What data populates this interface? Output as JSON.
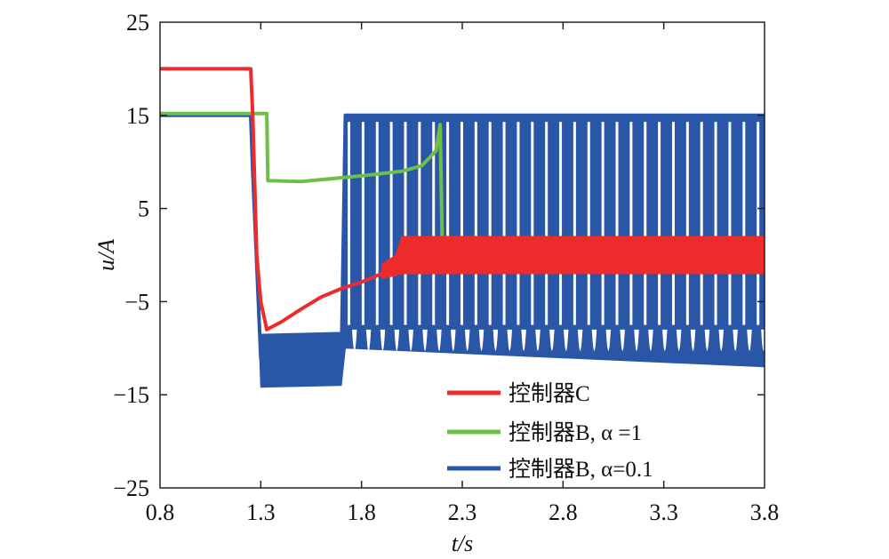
{
  "chart_data": {
    "type": "line",
    "xlabel": "t/s",
    "ylabel": "u/A",
    "xlim": [
      0.8,
      3.8
    ],
    "ylim": [
      -25,
      25
    ],
    "xticks": [
      "0.8",
      "1.3",
      "1.8",
      "2.3",
      "2.8",
      "3.3",
      "3.8"
    ],
    "yticks": [
      "25",
      "15",
      "5",
      "−5",
      "−15",
      "−25"
    ],
    "grid": false,
    "legend_position": "lower-right",
    "series": [
      {
        "name": "控制器C",
        "color": "#ee2b2b",
        "x": [
          0.8,
          1.25,
          1.26,
          1.28,
          1.3,
          1.33,
          1.4,
          1.5,
          1.6,
          1.7,
          1.8,
          1.9,
          1.97,
          2.0,
          3.8
        ],
        "y": [
          20,
          20,
          15,
          0,
          -5,
          -8,
          -7.2,
          -5.8,
          -4.5,
          -3.6,
          -2.9,
          -2.0,
          -1.0,
          0,
          0
        ],
        "band": [
          {
            "x": 1.9,
            "low": -2.5,
            "high": -1.0
          },
          {
            "x": 1.97,
            "low": -2.2,
            "high": 0.0
          },
          {
            "x": 2.0,
            "low": -2.0,
            "high": 2.0
          },
          {
            "x": 3.8,
            "low": -2.0,
            "high": 2.0
          }
        ]
      },
      {
        "name": "控制器B, α =1",
        "color": "#6cc04a",
        "x": [
          0.8,
          1.33,
          1.335,
          1.5,
          1.8,
          2.0,
          2.1,
          2.17,
          2.19,
          2.2
        ],
        "y": [
          15.2,
          15.2,
          8,
          7.9,
          8.5,
          9.0,
          9.6,
          11.2,
          14,
          2
        ]
      },
      {
        "name": "控制器B, α=0.1",
        "color": "#2a56a8",
        "x": [
          0.8,
          1.25,
          1.26,
          1.3,
          1.7,
          1.72,
          3.8
        ],
        "y": [
          15,
          15,
          9,
          -11,
          -11,
          15,
          15
        ],
        "band": [
          {
            "x": 1.26,
            "low": 9,
            "high": 15
          },
          {
            "x": 1.3,
            "low": -14.2,
            "high": -8.5
          },
          {
            "x": 1.7,
            "low": -14.0,
            "high": -8.3
          },
          {
            "x": 1.72,
            "low": -10,
            "high": 15
          },
          {
            "x": 3.8,
            "low": -12,
            "high": 15
          }
        ]
      }
    ]
  }
}
